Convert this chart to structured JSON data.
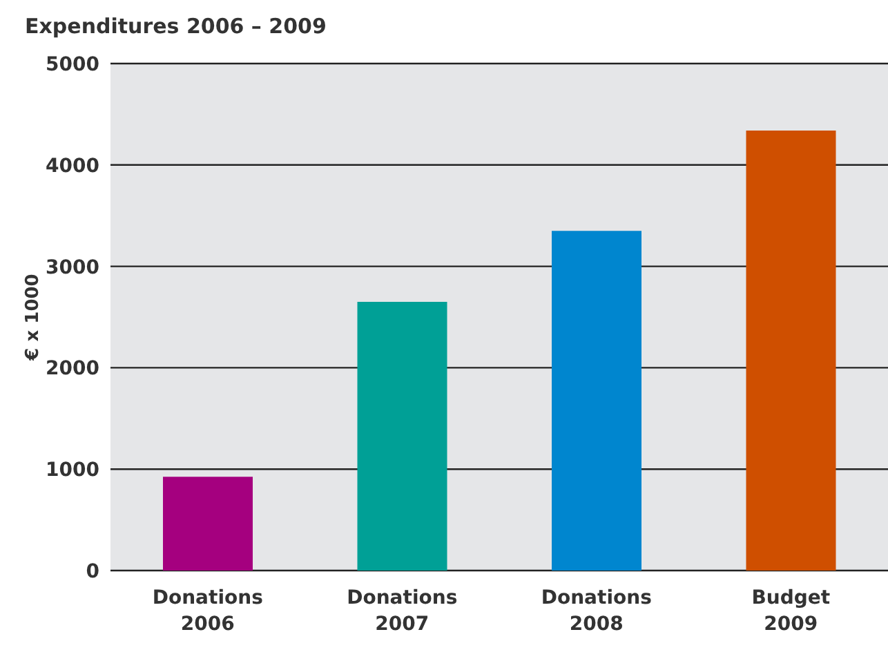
{
  "chart_data": {
    "type": "bar",
    "title": "Expenditures 2006 – 2009",
    "ylabel": "€ x 1000",
    "categories": [
      "Donations 2006",
      "Donations 2007",
      "Donations 2008",
      "Budget 2009"
    ],
    "values": [
      925,
      2650,
      3350,
      4340
    ],
    "colors": [
      "#a5007f",
      "#00a096",
      "#0086cf",
      "#cf4f00"
    ],
    "ylim": [
      0,
      5000
    ],
    "yticks": [
      0,
      1000,
      2000,
      3000,
      4000,
      5000
    ],
    "grid": "y",
    "legend": false
  }
}
